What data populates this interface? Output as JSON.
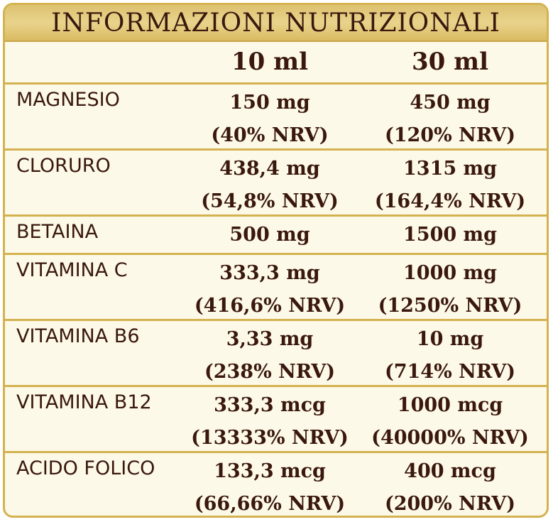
{
  "title": "INFORMAZIONI NUTRIZIONALI",
  "columns": [
    "10 ml",
    "30 ml"
  ],
  "rows": [
    {
      "name": "MAGNESIO",
      "v10": "150 mg",
      "n10": "(40% NRV)",
      "v30": "450 mg",
      "n30": "(120% NRV)"
    },
    {
      "name": "CLORURO",
      "v10": "438,4 mg",
      "n10": "(54,8% NRV)",
      "v30": "1315 mg",
      "n30": "(164,4% NRV)"
    },
    {
      "name": "BETAINA",
      "v10": "500 mg",
      "n10": "",
      "v30": "1500 mg",
      "n30": ""
    },
    {
      "name": "VITAMINA C",
      "v10": "333,3 mg",
      "n10": "(416,6% NRV)",
      "v30": "1000 mg",
      "n30": "(1250% NRV)"
    },
    {
      "name": "VITAMINA B6",
      "v10": "3,33 mg",
      "n10": "(238% NRV)",
      "v30": "10 mg",
      "n30": "(714% NRV)"
    },
    {
      "name": "VITAMINA B12",
      "v10": "333,3 mcg",
      "n10": "(13333% NRV)",
      "v30": "1000 mcg",
      "n30": "(40000% NRV)"
    },
    {
      "name": "ACIDO FOLICO",
      "v10": "133,3 mcg",
      "n10": "(66,66% NRV)",
      "v30": "400 mcg",
      "n30": "(200% NRV)"
    }
  ],
  "colors": {
    "border": "#d4b24f",
    "text": "#3a180e",
    "background": "#fdf9e8"
  }
}
